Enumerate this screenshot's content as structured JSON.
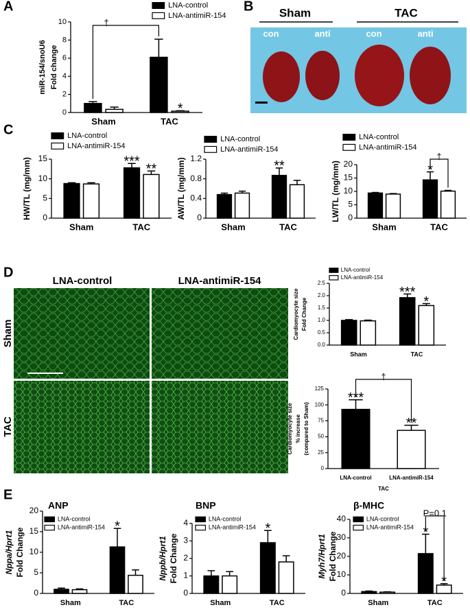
{
  "panels": [
    "A",
    "B",
    "C",
    "D",
    "E"
  ],
  "images": {
    "hearts": {
      "groups": [
        "Sham",
        "TAC"
      ],
      "labels": [
        "con",
        "anti",
        "con",
        "anti"
      ]
    },
    "micrographs": {
      "columns": [
        "LNA-control",
        "LNA-antimiR-154"
      ],
      "rows": [
        "Sham",
        "TAC"
      ]
    }
  },
  "chart_data": [
    {
      "type": "bar",
      "ylabel": [
        "miR-154/snoU6",
        "Fold change"
      ],
      "categories": [
        "Sham",
        "TAC"
      ],
      "legend": true,
      "series": [
        {
          "name": "LNA-control",
          "color": "#000000",
          "values": [
            1.0,
            6.1
          ],
          "errors": [
            0.2,
            2.0
          ]
        },
        {
          "name": "LNA-antimiR-154",
          "color": "#ffffff",
          "values": [
            0.35,
            0.15
          ],
          "errors": [
            0.25,
            0.05
          ]
        }
      ],
      "ylim": [
        0,
        10
      ],
      "yticks": [
        0,
        2,
        4,
        6,
        8,
        10
      ],
      "annotations": [
        "†",
        "*"
      ]
    },
    {
      "type": "bar",
      "ylabel": [
        "HW/TL (mg/mm)"
      ],
      "categories": [
        "Sham",
        "TAC"
      ],
      "legend": true,
      "series": [
        {
          "name": "LNA-control",
          "color": "#000000",
          "values": [
            8.8,
            12.8
          ],
          "errors": [
            0.2,
            1.1
          ]
        },
        {
          "name": "LNA-antimiR-154",
          "color": "#ffffff",
          "values": [
            8.7,
            11.1
          ],
          "errors": [
            0.3,
            0.9
          ]
        }
      ],
      "ylim": [
        0,
        15
      ],
      "yticks": [
        0,
        5,
        10,
        15
      ],
      "annotations": [
        "***",
        "**"
      ]
    },
    {
      "type": "bar",
      "ylabel": [
        "AW/TL (mg/mm)"
      ],
      "categories": [
        "Sham",
        "TAC"
      ],
      "legend": true,
      "series": [
        {
          "name": "LNA-control",
          "color": "#000000",
          "values": [
            0.48,
            0.87
          ],
          "errors": [
            0.03,
            0.15
          ]
        },
        {
          "name": "LNA-antimiR-154",
          "color": "#ffffff",
          "values": [
            0.51,
            0.68
          ],
          "errors": [
            0.04,
            0.09
          ]
        }
      ],
      "ylim": [
        0,
        1.2
      ],
      "yticks": [
        0,
        0.4,
        0.8,
        1.2
      ],
      "annotations": [
        "**"
      ]
    },
    {
      "type": "bar",
      "ylabel": [
        "LW/TL (mg/mm)"
      ],
      "categories": [
        "Sham",
        "TAC"
      ],
      "legend": true,
      "series": [
        {
          "name": "LNA-control",
          "color": "#000000",
          "values": [
            9.4,
            14.3
          ],
          "errors": [
            0.2,
            3.0
          ]
        },
        {
          "name": "LNA-antimiR-154",
          "color": "#ffffff",
          "values": [
            9.0,
            10.1
          ],
          "errors": [
            0.2,
            0.3
          ]
        }
      ],
      "ylim": [
        0,
        20
      ],
      "yticks": [
        0,
        5,
        10,
        15,
        20
      ],
      "annotations": [
        "*",
        "†"
      ]
    },
    {
      "type": "bar",
      "ylabel": [
        "Cardiomyocyte size",
        "Fold Change"
      ],
      "categories": [
        "Sham",
        "TAC"
      ],
      "legend": true,
      "series": [
        {
          "name": "LNA-control",
          "color": "#000000",
          "values": [
            1.0,
            1.92
          ],
          "errors": [
            0.03,
            0.15
          ]
        },
        {
          "name": "LNA-antimiR-154",
          "color": "#ffffff",
          "values": [
            0.98,
            1.6
          ],
          "errors": [
            0.03,
            0.08
          ]
        }
      ],
      "ylim": [
        0,
        2.5
      ],
      "yticks": [
        {
          "value": 0,
          "label": "0.0"
        },
        0.5,
        {
          "value": 1,
          "label": "1.0"
        },
        1.5,
        {
          "value": 2,
          "label": "2.0"
        },
        2.5
      ],
      "annotations": [
        "***",
        "*"
      ]
    },
    {
      "type": "bar",
      "ylabel": [
        "Cardiomyocyte size",
        "% increase",
        "(compared to Sham)"
      ],
      "categories": [
        "LNA-control",
        "LNA-antimiR-154"
      ],
      "group_label": "TAC",
      "values": [
        93,
        60
      ],
      "errors": [
        15,
        8
      ],
      "colors": [
        "#000000",
        "#ffffff"
      ],
      "ylim": [
        0,
        125
      ],
      "yticks": [
        0,
        25,
        50,
        75,
        100,
        125
      ],
      "annotations": [
        "***",
        "**",
        "†"
      ]
    },
    {
      "type": "bar",
      "title": "ANP",
      "ylabel": [
        "Nppa/Hprt1",
        "Fold Change"
      ],
      "categories": [
        "Sham",
        "TAC"
      ],
      "legend": true,
      "series": [
        {
          "name": "LNA-control",
          "color": "#000000",
          "values": [
            1.0,
            11.3
          ],
          "errors": [
            0.3,
            4.5
          ]
        },
        {
          "name": "LNA-antimiR-154",
          "color": "#ffffff",
          "values": [
            0.9,
            4.4
          ],
          "errors": [
            0.2,
            1.3
          ]
        }
      ],
      "ylim": [
        0,
        20
      ],
      "yticks": [
        0,
        5,
        10,
        15,
        20
      ],
      "annotations": [
        "*"
      ]
    },
    {
      "type": "bar",
      "title": "BNP",
      "ylabel": [
        "Nppb/Hprt1",
        "Fold Change"
      ],
      "categories": [
        "Sham",
        "TAC"
      ],
      "legend": true,
      "series": [
        {
          "name": "LNA-control",
          "color": "#000000",
          "values": [
            1.0,
            2.9
          ],
          "errors": [
            0.3,
            0.7
          ]
        },
        {
          "name": "LNA-antimiR-154",
          "color": "#ffffff",
          "values": [
            1.0,
            1.8
          ],
          "errors": [
            0.25,
            0.35
          ]
        }
      ],
      "ylim": [
        0,
        4
      ],
      "yticks": [
        0,
        1,
        2,
        3,
        4
      ],
      "annotations": [
        "*"
      ]
    },
    {
      "type": "bar",
      "title": "β-MHC",
      "ylabel": [
        "Myh7/Hprt1",
        "Fold Change"
      ],
      "categories": [
        "Sham",
        "TAC"
      ],
      "legend": true,
      "series": [
        {
          "name": "LNA-control",
          "color": "#000000",
          "values": [
            1.0,
            21.5
          ],
          "errors": [
            0.3,
            10.5
          ]
        },
        {
          "name": "LNA-antimiR-154",
          "color": "#ffffff",
          "values": [
            0.7,
            4.5
          ],
          "errors": [
            0.2,
            0.8
          ]
        }
      ],
      "ylim": [
        0,
        40
      ],
      "yticks": [
        0,
        10,
        20,
        30,
        40
      ],
      "annotations": [
        "*",
        "*",
        "P=0.1"
      ]
    }
  ]
}
